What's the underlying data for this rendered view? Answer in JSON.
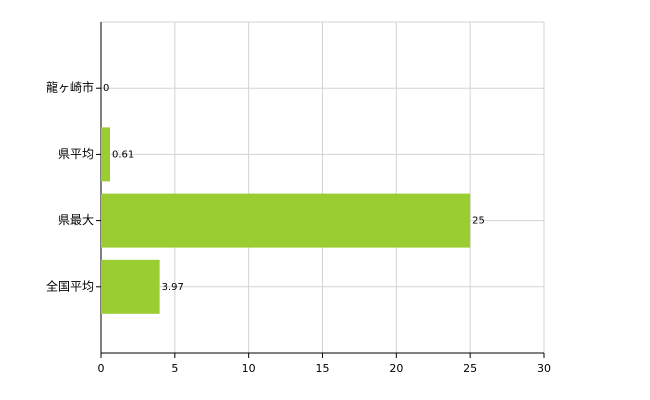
{
  "chart_data": {
    "type": "barh",
    "categories": [
      "龍ヶ崎市",
      "県平均",
      "県最大",
      "全国平均"
    ],
    "values": [
      0,
      0.61,
      25,
      3.97
    ],
    "color": "#9acd32",
    "xlim": [
      0,
      30
    ],
    "xticks": [
      0,
      5,
      10,
      15,
      20,
      25,
      30
    ],
    "grid": true
  }
}
